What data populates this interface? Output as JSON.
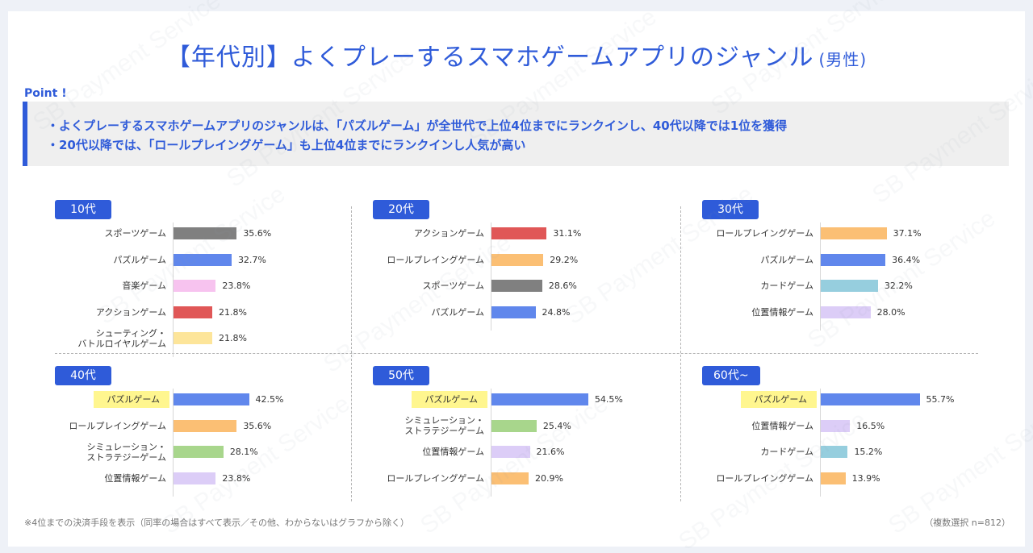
{
  "title": "【年代別】よくプレーするスマホゲームアプリのジャンル",
  "subtitle": "(男性)",
  "point": {
    "label": "Point !",
    "lines": [
      "・よくプレーするスマホゲームアプリのジャンルは、「パズルゲーム」が全世代で上位4位までにランクインし、40代以降では1位を獲得",
      "・20代以降では、「ロールプレイングゲーム」も上位4位までにランクインし人気が高い"
    ]
  },
  "footnote": "※4位までの決済手段を表示（同率の場合はすべて表示／その他、わからないはグラフから除く）",
  "sample_note": "（複数選択 n=812）",
  "watermark": "SB Payment Service",
  "colors": {
    "accent": "#2f5bd9",
    "highlight": "#fff68f"
  },
  "chart_data": [
    {
      "type": "bar",
      "orientation": "horizontal",
      "title": "10代",
      "categories": [
        "スポーツゲーム",
        "パズルゲーム",
        "音楽ゲーム",
        "アクションゲーム",
        "シューティング・\nバトルロイヤルゲーム"
      ],
      "values": [
        35.6,
        32.7,
        23.8,
        21.8,
        21.8
      ],
      "labels": [
        "35.6%",
        "32.7%",
        "23.8%",
        "21.8%",
        "21.8%"
      ],
      "colors": [
        "#808080",
        "#6087ec",
        "#f7c3ef",
        "#e05757",
        "#fde59a"
      ],
      "highlight": [
        false,
        false,
        false,
        false,
        false
      ]
    },
    {
      "type": "bar",
      "orientation": "horizontal",
      "title": "20代",
      "categories": [
        "アクションゲーム",
        "ロールプレイングゲーム",
        "スポーツゲーム",
        "パズルゲーム"
      ],
      "values": [
        31.1,
        29.2,
        28.6,
        24.8
      ],
      "labels": [
        "31.1%",
        "29.2%",
        "28.6%",
        "24.8%"
      ],
      "colors": [
        "#e05757",
        "#fbbf74",
        "#808080",
        "#6087ec"
      ],
      "highlight": [
        false,
        false,
        false,
        false
      ]
    },
    {
      "type": "bar",
      "orientation": "horizontal",
      "title": "30代",
      "categories": [
        "ロールプレイングゲーム",
        "パズルゲーム",
        "カードゲーム",
        "位置情報ゲーム"
      ],
      "values": [
        37.1,
        36.4,
        32.2,
        28.0
      ],
      "labels": [
        "37.1%",
        "36.4%",
        "32.2%",
        "28.0%"
      ],
      "colors": [
        "#fbbf74",
        "#6087ec",
        "#96cede",
        "#dccdf7"
      ],
      "highlight": [
        false,
        false,
        false,
        false
      ]
    },
    {
      "type": "bar",
      "orientation": "horizontal",
      "title": "40代",
      "categories": [
        "パズルゲーム",
        "ロールプレイングゲーム",
        "シミュレーション・\nストラテジーゲーム",
        "位置情報ゲーム"
      ],
      "values": [
        42.5,
        35.6,
        28.1,
        23.8
      ],
      "labels": [
        "42.5%",
        "35.6%",
        "28.1%",
        "23.8%"
      ],
      "colors": [
        "#6087ec",
        "#fbbf74",
        "#a8d68c",
        "#dccdf7"
      ],
      "highlight": [
        true,
        false,
        false,
        false
      ]
    },
    {
      "type": "bar",
      "orientation": "horizontal",
      "title": "50代",
      "categories": [
        "パズルゲーム",
        "シミュレーション・\nストラテジーゲーム",
        "位置情報ゲーム",
        "ロールプレイングゲーム"
      ],
      "values": [
        54.5,
        25.4,
        21.6,
        20.9
      ],
      "labels": [
        "54.5%",
        "25.4%",
        "21.6%",
        "20.9%"
      ],
      "colors": [
        "#6087ec",
        "#a8d68c",
        "#dccdf7",
        "#fbbf74"
      ],
      "highlight": [
        true,
        false,
        false,
        false
      ]
    },
    {
      "type": "bar",
      "orientation": "horizontal",
      "title": "60代~",
      "categories": [
        "パズルゲーム",
        "位置情報ゲーム",
        "カードゲーム",
        "ロールプレイングゲーム"
      ],
      "values": [
        55.7,
        16.5,
        15.2,
        13.9
      ],
      "labels": [
        "55.7%",
        "16.5%",
        "15.2%",
        "13.9%"
      ],
      "colors": [
        "#6087ec",
        "#dccdf7",
        "#96cede",
        "#fbbf74"
      ],
      "highlight": [
        true,
        false,
        false,
        false
      ]
    }
  ]
}
